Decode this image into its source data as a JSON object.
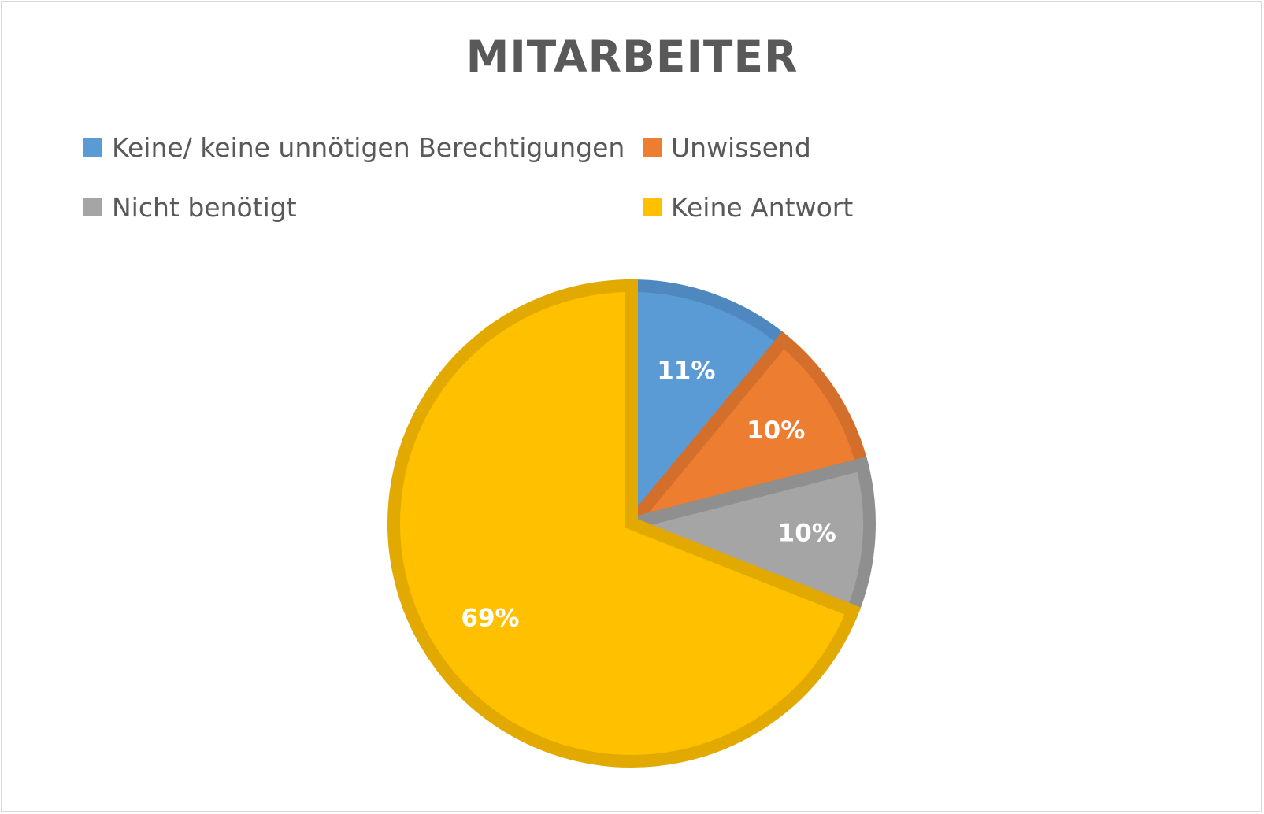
{
  "chart_data": {
    "type": "pie",
    "title": "MITARBEITER",
    "categories": [
      "Keine/ keine unnötigen Berechtigungen",
      "Unwissend",
      "Nicht benötigt",
      "Keine Antwort"
    ],
    "values": [
      11,
      10,
      10,
      69
    ],
    "value_labels": [
      "11%",
      "10%",
      "10%",
      "69%"
    ],
    "colors": [
      "#5b9bd5",
      "#ed7d31",
      "#a5a5a5",
      "#ffc000"
    ],
    "border_colors": [
      "#4f88bf",
      "#d46f2b",
      "#8f8f8f",
      "#e2aa00"
    ],
    "legend_position": "top"
  }
}
